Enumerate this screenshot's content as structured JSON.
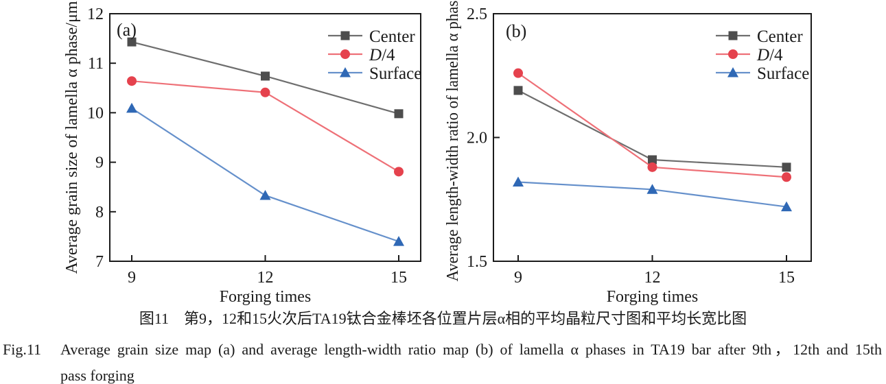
{
  "figure": {
    "caption_zh": "图11　第9，12和15火次后TA19钛合金棒坯各位置片层α相的平均晶粒尺寸图和平均长宽比图",
    "caption_en_label": "Fig.11",
    "caption_en_line1": "Average grain size map (a) and average length-width ratio map (b) of lamella α phases in TA19 bar after 9th，12th and 15th",
    "caption_en_line2": "pass forging"
  },
  "colors": {
    "axis": "#1a1a1a",
    "center_line": "#6e6e6e",
    "center_marker": "#4d4d4d",
    "d4_line": "#ee7077",
    "d4_marker": "#e5424d",
    "surface_line": "#6590cb",
    "surface_marker": "#2f68b5"
  },
  "chart_data": [
    {
      "type": "line",
      "panel_label": "(a)",
      "xlabel": "Forging times",
      "ylabel": "Average grain size of lamella α phase/μm",
      "x": [
        9,
        12,
        15
      ],
      "x_tick_labels": [
        "9",
        "12",
        "15"
      ],
      "ylim": [
        7,
        12
      ],
      "yticks": [
        7,
        8,
        9,
        10,
        11,
        12
      ],
      "ytick_labels": [
        "7",
        "8",
        "9",
        "10",
        "11",
        "12"
      ],
      "grid": false,
      "legend_position": "upper-right-inside",
      "series": [
        {
          "name": "Center",
          "italic_first": false,
          "marker": "square",
          "line_color": "#6e6e6e",
          "marker_color": "#4d4d4d",
          "values": [
            11.43,
            10.74,
            9.98
          ]
        },
        {
          "name": "D/4",
          "italic_first": true,
          "marker": "circle",
          "line_color": "#ee7077",
          "marker_color": "#e5424d",
          "values": [
            10.64,
            10.41,
            8.81
          ]
        },
        {
          "name": "Surface",
          "italic_first": false,
          "marker": "triangle",
          "line_color": "#6590cb",
          "marker_color": "#2f68b5",
          "values": [
            10.09,
            8.33,
            7.4
          ]
        }
      ]
    },
    {
      "type": "line",
      "panel_label": "(b)",
      "xlabel": "Forging times",
      "ylabel": "Average length-width ratio of lamella α phase",
      "x": [
        9,
        12,
        15
      ],
      "x_tick_labels": [
        "9",
        "12",
        "15"
      ],
      "ylim": [
        1.5,
        2.5
      ],
      "yticks": [
        1.5,
        2.0,
        2.5
      ],
      "ytick_labels": [
        "1.5",
        "2.0",
        "2.5"
      ],
      "grid": false,
      "legend_position": "upper-right-inside",
      "series": [
        {
          "name": "Center",
          "italic_first": false,
          "marker": "square",
          "line_color": "#6e6e6e",
          "marker_color": "#4d4d4d",
          "values": [
            2.19,
            1.91,
            1.88
          ]
        },
        {
          "name": "D/4",
          "italic_first": true,
          "marker": "circle",
          "line_color": "#ee7077",
          "marker_color": "#e5424d",
          "values": [
            2.26,
            1.88,
            1.84
          ]
        },
        {
          "name": "Surface",
          "italic_first": false,
          "marker": "triangle",
          "line_color": "#6590cb",
          "marker_color": "#2f68b5",
          "values": [
            1.82,
            1.79,
            1.72
          ]
        }
      ]
    }
  ]
}
